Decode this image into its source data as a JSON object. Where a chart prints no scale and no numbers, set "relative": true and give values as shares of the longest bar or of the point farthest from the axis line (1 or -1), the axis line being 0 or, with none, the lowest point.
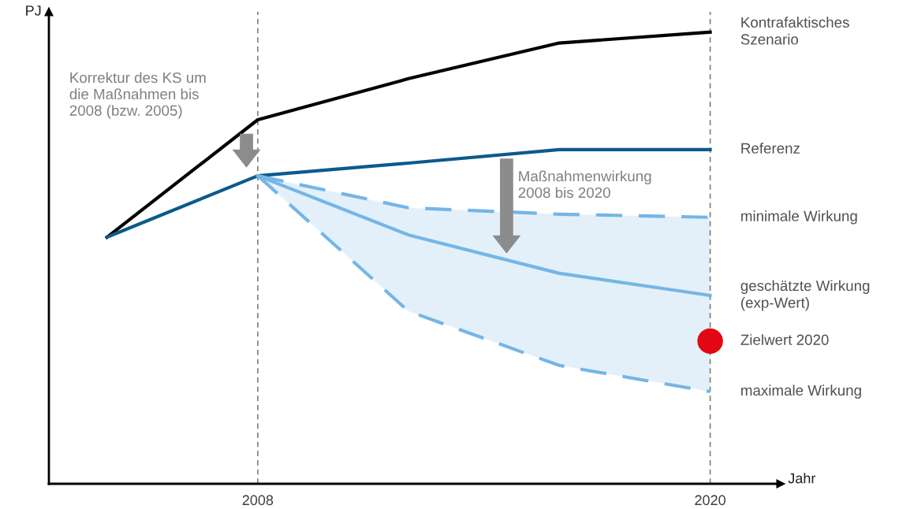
{
  "chart_data": {
    "type": "line",
    "relative": true,
    "xlabel": "Jahr",
    "ylabel": "PJ",
    "x": [
      2004,
      2008,
      2012,
      2016,
      2020
    ],
    "xlim": [
      2002.46,
      2021.87
    ],
    "xticks": [
      2008,
      2020
    ],
    "legend": false,
    "grid": false,
    "marker": "none",
    "series": [
      {
        "name": "Kontrafaktisches\nSzenario",
        "color": "#000000",
        "line_style": "solid",
        "values": [
          0.546,
          0.806,
          0.897,
          0.976,
          1
        ]
      },
      {
        "name": "Referenz",
        "color": "#0b5a8c",
        "line_style": "solid",
        "values": [
          0.546,
          0.682,
          0.71,
          0.74,
          0.74
        ]
      },
      {
        "name": "minimale Wirkung",
        "color": "#74b6e6",
        "line_style": "dashed",
        "x": [
          2008,
          2012,
          2016,
          2020
        ],
        "values": [
          0.682,
          0.611,
          0.597,
          0.59
        ]
      },
      {
        "name": "geschätzte Wirkung\n(exp-Wert)",
        "color": "#74b6e6",
        "line_style": "solid",
        "x": [
          2008,
          2012,
          2016,
          2020
        ],
        "values": [
          0.682,
          0.551,
          0.466,
          0.417
        ],
        "lower": [
          0.682,
          0.382,
          0.262,
          0.204
        ],
        "upper": [
          0.682,
          0.611,
          0.597,
          0.59
        ]
      },
      {
        "name": "maximale Wirkung",
        "color": "#74b6e6",
        "line_style": "dashed",
        "x": [
          2008,
          2012,
          2016,
          2020
        ],
        "values": [
          0.682,
          0.382,
          0.262,
          0.204
        ]
      },
      {
        "name": "Zielwert 2020",
        "type": "scatter",
        "marker": "circle",
        "color": "#e30613",
        "x": [
          2020
        ],
        "values": [
          0.316
        ]
      }
    ],
    "ref_lines": [
      {
        "axis": "x",
        "value": 2008,
        "color": "#7f7f7f",
        "line_style": "dashed"
      },
      {
        "axis": "x",
        "value": 2020,
        "color": "#7f7f7f",
        "line_style": "dashed"
      }
    ],
    "annotations": [
      "Korrektur des KS um\ndie Maßnahmen bis\n2008 (bzw. 2005)",
      "Maßnahmenwirkung\n2008 bis 2020"
    ]
  }
}
